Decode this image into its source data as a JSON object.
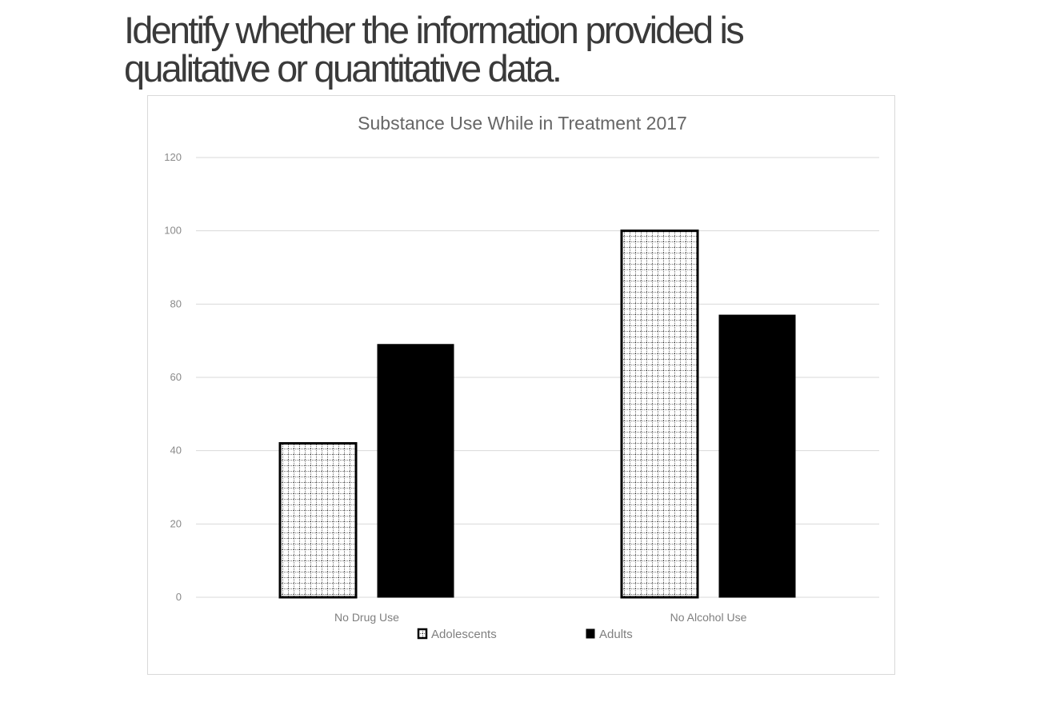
{
  "question": {
    "text": "Identify whether the information provided is qualitative or quantitative data."
  },
  "chart_data": {
    "type": "bar",
    "title": "Substance Use While in Treatment 2017",
    "categories": [
      "No Drug Use",
      "No Alcohol Use"
    ],
    "series": [
      {
        "name": "Adolescents",
        "values": [
          42,
          100
        ],
        "pattern": "dotted-grid",
        "color": "#000000"
      },
      {
        "name": "Adults",
        "values": [
          69,
          77
        ],
        "pattern": "solid",
        "color": "#000000"
      }
    ],
    "ylim": [
      0,
      120
    ],
    "yticks": [
      0,
      20,
      40,
      60,
      80,
      100,
      120
    ],
    "xlabel": "",
    "ylabel": "",
    "grid": true,
    "legend_position": "bottom"
  }
}
